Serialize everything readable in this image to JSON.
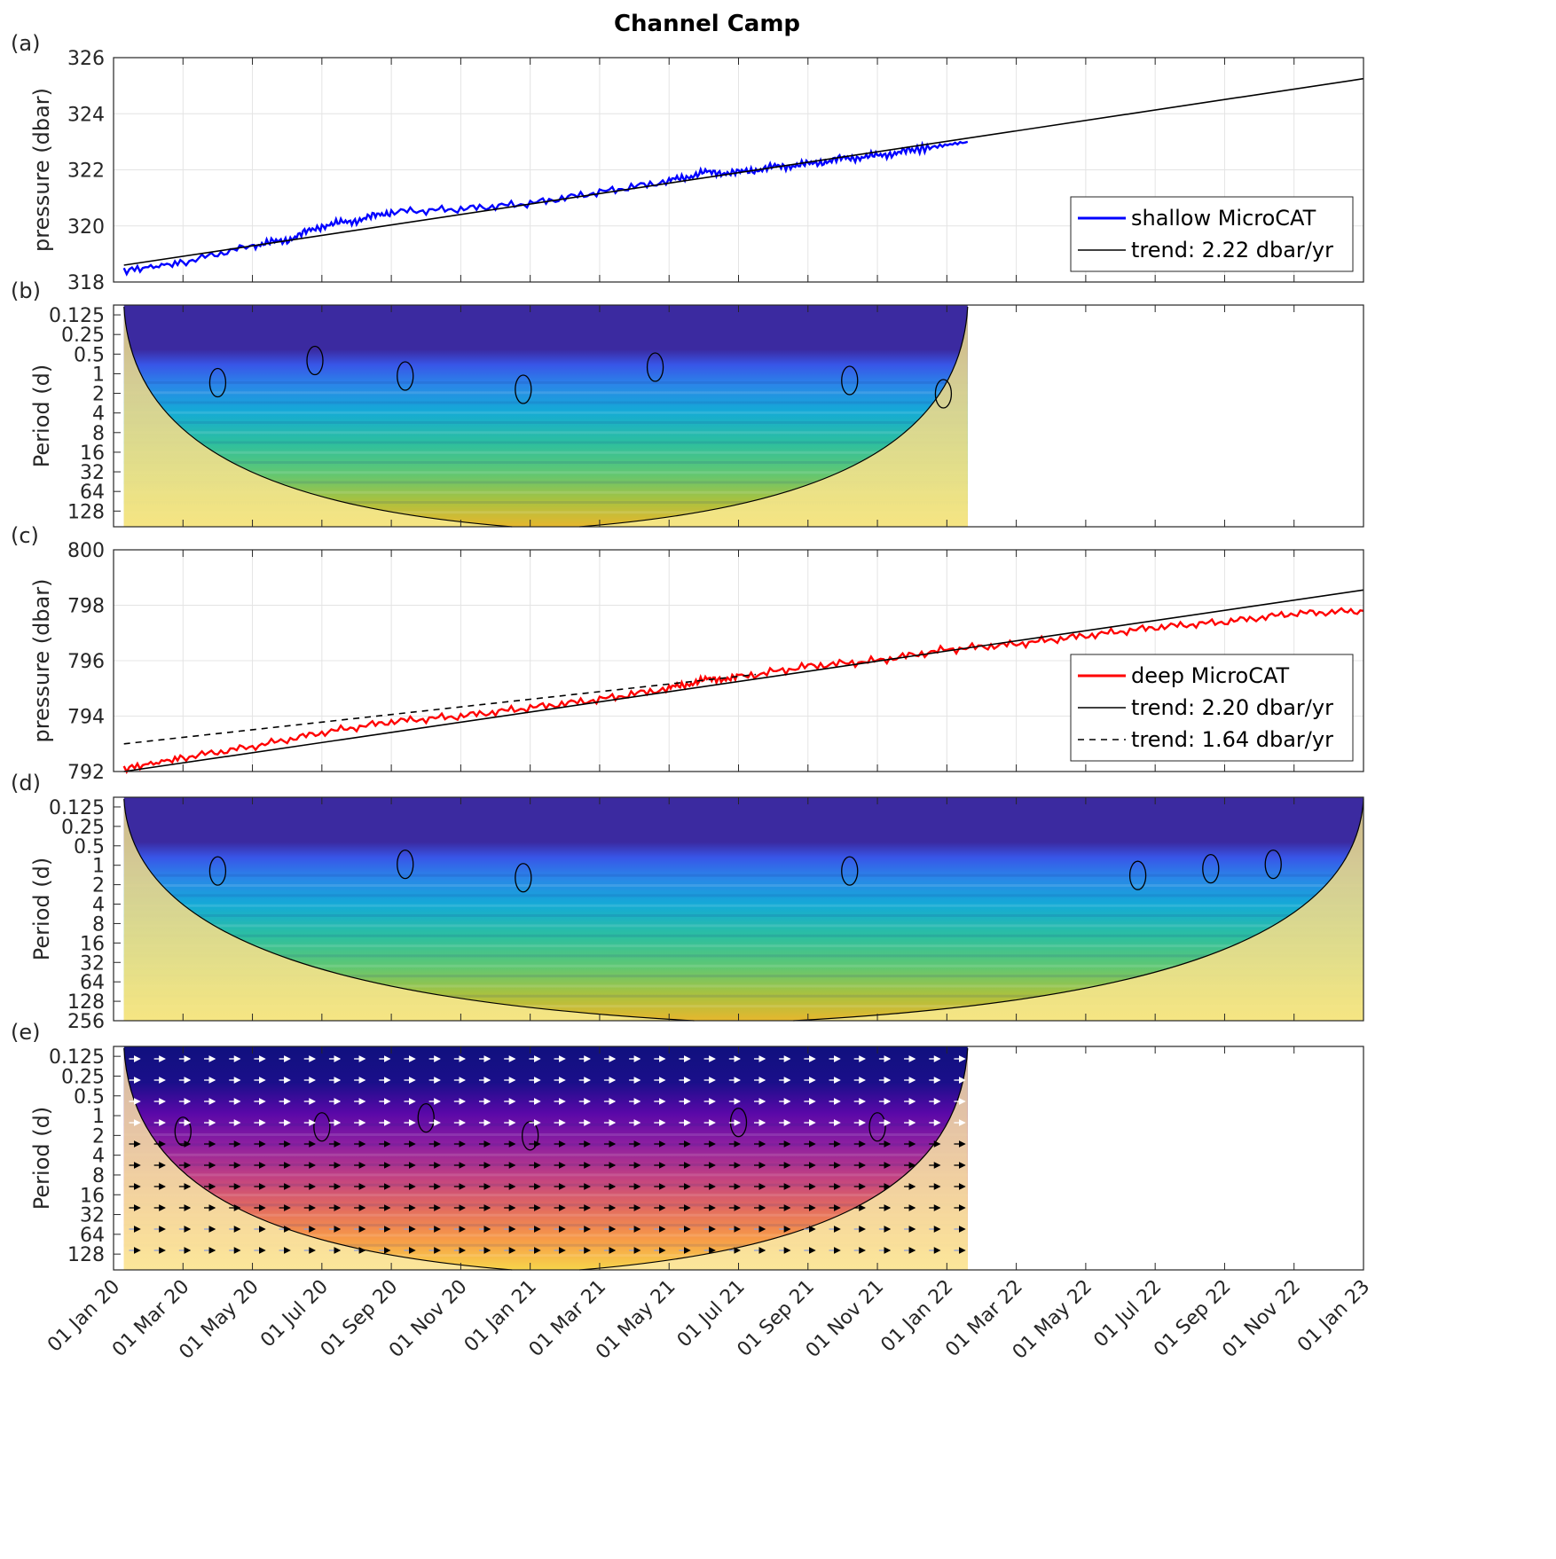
{
  "chart_data": {
    "type": "multi-panel",
    "title": "Channel Camp",
    "x_axis": {
      "range": [
        "01 Jan 20",
        "01 Jan 23"
      ],
      "tick_labels": [
        "01 Jan 20",
        "01 Mar 20",
        "01 May 20",
        "01 Jul 20",
        "01 Sep 20",
        "01 Nov 20",
        "01 Jan 21",
        "01 Mar 21",
        "01 May 21",
        "01 Jul 21",
        "01 Sep 21",
        "01 Nov 21",
        "01 Jan 22",
        "01 Mar 22",
        "01 May 22",
        "01 Jul 22",
        "01 Sep 22",
        "01 Nov 22",
        "01 Jan 23"
      ],
      "tick_months": [
        0,
        2,
        4,
        6,
        8,
        10,
        12,
        14,
        16,
        18,
        20,
        22,
        24,
        26,
        28,
        30,
        32,
        34,
        36
      ]
    },
    "panels": [
      {
        "id": "a",
        "label": "(a)",
        "type": "line",
        "ylabel": "pressure (dbar)",
        "ylim": [
          318,
          326
        ],
        "yticks": [
          "318",
          "320",
          "322",
          "324",
          "326"
        ],
        "series": [
          {
            "name": "shallow MicroCAT",
            "color": "#0000ff",
            "x_months": [
              0.3,
              2,
              4,
              5,
              6,
              7,
              8,
              10,
              12,
              14,
              16,
              17,
              18,
              19,
              20,
              21,
              22,
              23,
              24.6
            ],
            "values": [
              318.4,
              318.7,
              319.3,
              319.5,
              320.0,
              320.2,
              320.5,
              320.6,
              320.8,
              321.2,
              321.6,
              321.9,
              321.9,
              322.1,
              322.2,
              322.4,
              322.5,
              322.7,
              323.0
            ]
          },
          {
            "name": "trend: 2.22 dbar/yr",
            "color": "#000000",
            "dash": "",
            "x_months": [
              0.3,
              36
            ],
            "values": [
              318.6,
              325.25
            ]
          }
        ]
      },
      {
        "id": "b",
        "label": "(b)",
        "type": "heatmap",
        "ylabel": "Period (d)",
        "yticks": [
          "0.125",
          "0.25",
          "0.5",
          "1",
          "2",
          "4",
          "8",
          "16",
          "32",
          "64",
          "128"
        ],
        "period_range": [
          0.125,
          200
        ],
        "x_extent_months": [
          0.3,
          24.6
        ],
        "colormap": "parula"
      },
      {
        "id": "c",
        "label": "(c)",
        "type": "line",
        "ylabel": "pressure (dbar)",
        "ylim": [
          792,
          800
        ],
        "yticks": [
          "792",
          "794",
          "796",
          "798",
          "800"
        ],
        "series": [
          {
            "name": "deep MicroCAT",
            "color": "#ff0000",
            "x_months": [
              0.3,
              2,
              4,
              6,
              8,
              10,
              12,
              14,
              16,
              17,
              18,
              20,
              22,
              24,
              26,
              28,
              30,
              32,
              34,
              36
            ],
            "values": [
              792.1,
              792.5,
              792.9,
              793.4,
              793.8,
              794.0,
              794.3,
              794.6,
              795.0,
              795.3,
              795.4,
              795.8,
              796.0,
              796.4,
              796.6,
              796.9,
              797.2,
              797.4,
              797.7,
              797.8
            ]
          },
          {
            "name": "trend: 2.20 dbar/yr",
            "color": "#000000",
            "dash": "",
            "x_months": [
              0.3,
              36
            ],
            "values": [
              792.0,
              798.55
            ]
          },
          {
            "name": "trend: 1.64 dbar/yr",
            "color": "#000000",
            "dash": "7,6",
            "x_months": [
              0.3,
              18.5
            ],
            "values": [
              793.0,
              795.5
            ]
          }
        ]
      },
      {
        "id": "d",
        "label": "(d)",
        "type": "heatmap",
        "ylabel": "Period (d)",
        "yticks": [
          "0.125",
          "0.25",
          "0.5",
          "1",
          "2",
          "4",
          "8",
          "16",
          "32",
          "64",
          "128",
          "256"
        ],
        "period_range": [
          0.125,
          256
        ],
        "x_extent_months": [
          0.3,
          36
        ],
        "colormap": "parula"
      },
      {
        "id": "e",
        "label": "(e)",
        "type": "heatmap",
        "ylabel": "Period (d)",
        "yticks": [
          "0.125",
          "0.25",
          "0.5",
          "1",
          "2",
          "4",
          "8",
          "16",
          "32",
          "64",
          "128"
        ],
        "period_range": [
          0.125,
          200
        ],
        "x_extent_months": [
          0.3,
          24.6
        ],
        "colormap": "plasma",
        "phase_arrows": true
      }
    ]
  }
}
